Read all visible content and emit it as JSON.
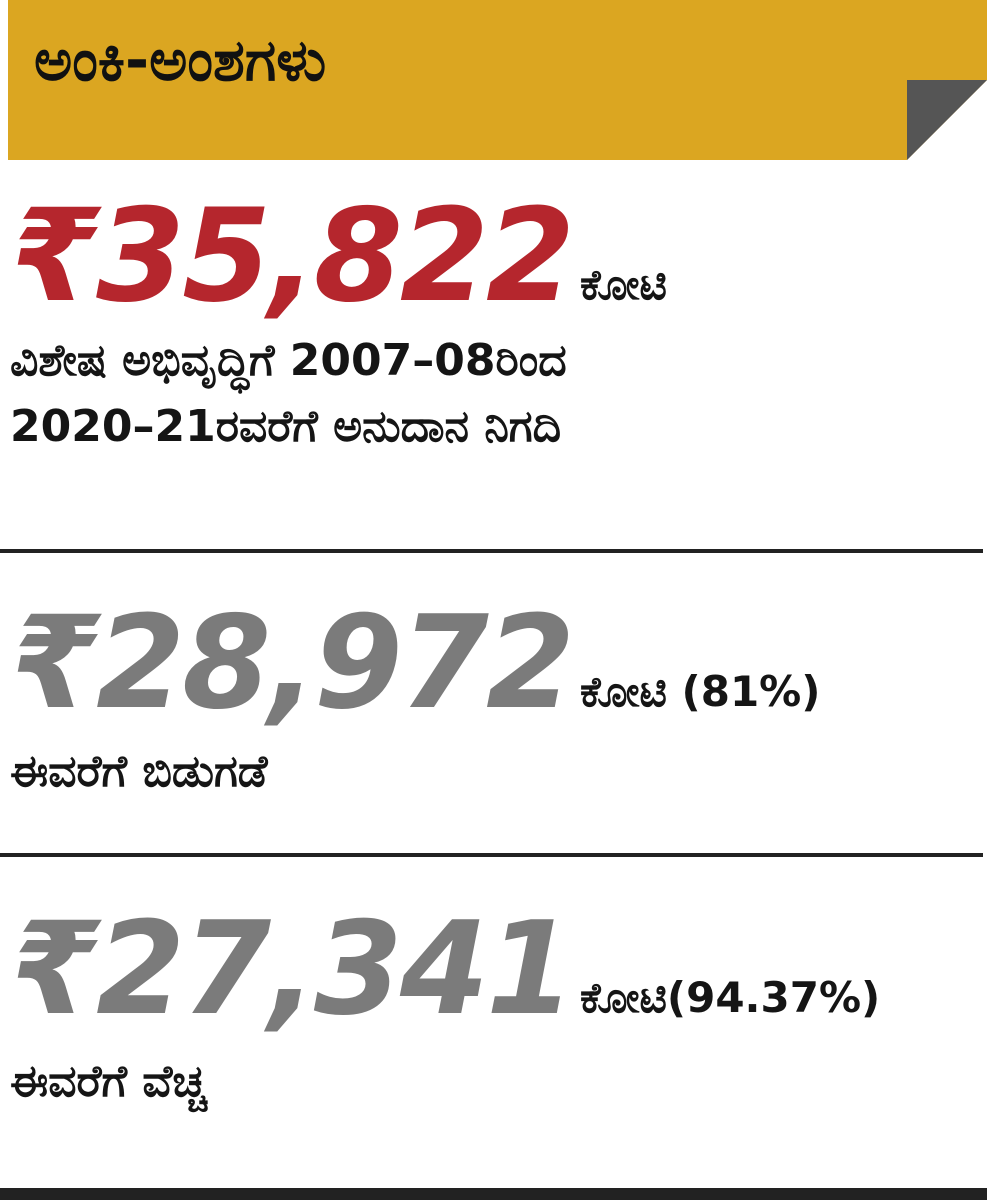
{
  "header": {
    "title": "ಅಂಕಿ-ಅಂಶಗಳು",
    "background": "#dba621",
    "corner_color": "#555555"
  },
  "stats": [
    {
      "amount": "₹35,822",
      "unit": "ಕೋಟಿ",
      "description_lines": [
        "ವಿಶೇಷ ಅಭಿವೃದ್ಧಿಗೆ 2007–08ರಿಂದ",
        "2020–21ರವರೆಗೆ ಅನುದಾನ ನಿಗದಿ"
      ],
      "color": "#b5262d"
    },
    {
      "amount": "₹28,972",
      "unit": "ಕೋಟಿ (81%)",
      "description_lines": [
        "ಈವರೆಗೆ ಬಿಡುಗಡೆ"
      ],
      "color": "#7b7b7b"
    },
    {
      "amount": "₹27,341",
      "unit": "ಕೋಟಿ(94.37%)",
      "description_lines": [
        "ಈವರೆಗೆ ವೆಚ್ಚ"
      ],
      "color": "#7b7b7b"
    }
  ]
}
